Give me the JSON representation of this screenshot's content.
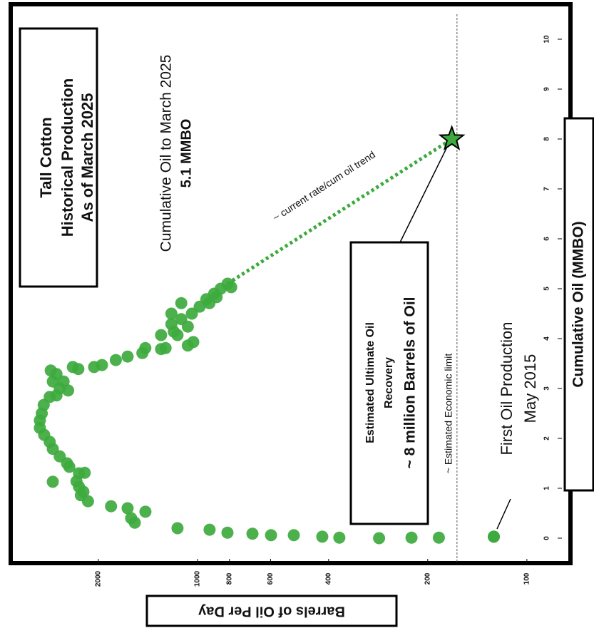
{
  "chart_data": {
    "type": "scatter",
    "title": [
      "Tall Cotton",
      "Historical Production",
      "As of March 2025"
    ],
    "x_label": "Cumulative Oil (MMBO)",
    "y_label": "Barrels of Oil Per Day",
    "x": [
      0.03,
      0.01,
      0.01,
      0,
      0.01,
      0.03,
      0.06,
      0.06,
      0.09,
      0.11,
      0.17,
      0.2,
      0.53,
      0.4,
      0.31,
      0.6,
      0.64,
      0.74,
      0.93,
      1.03,
      1.14,
      0.86,
      1.13,
      1.3,
      1.43,
      1.31,
      1.5,
      1.64,
      1.79,
      1.93,
      2.07,
      2.21,
      2.36,
      2.5,
      2.67,
      2.83,
      2.86,
      3.0,
      3.14,
      2.96,
      3.29,
      3.36,
      3.14,
      3.43,
      3.39,
      3.43,
      3.47,
      3.57,
      3.64,
      3.71,
      3.79,
      3.81,
      3.81,
      4.07,
      4.14,
      3.86,
      3.93,
      4.29,
      4.39,
      4.24,
      4.5,
      4.64,
      4.79,
      4.9,
      5.0,
      5.1,
      5.03,
      4.71,
      4.71,
      4.5,
      4.07,
      4.83
    ],
    "values": [
      126,
      185,
      224,
      281,
      371,
      418,
      510,
      598,
      681,
      811,
      919,
      1150,
      1439,
      1590,
      1550,
      1630,
      1830,
      2150,
      2220,
      2290,
      2330,
      2260,
      2750,
      2290,
      2450,
      2200,
      2490,
      2620,
      2750,
      2810,
      2920,
      3010,
      3010,
      2970,
      2930,
      2810,
      2680,
      2620,
      2550,
      2470,
      2680,
      2790,
      2750,
      2390,
      2300,
      2060,
      1950,
      1770,
      1630,
      1470,
      1290,
      1250,
      1440,
      1290,
      1180,
      1070,
      1030,
      1200,
      1120,
      1070,
      1040,
      985,
      940,
      890,
      850,
      810,
      790,
      920,
      1120,
      1200,
      1150,
      875
    ],
    "color": "#3daa3d",
    "xlim": [
      -0.5,
      10.5
    ],
    "xticks": [
      0,
      1,
      2,
      3,
      4,
      5,
      6,
      7,
      8,
      9,
      10
    ],
    "ylim": [
      90,
      3600
    ],
    "yticks": [
      100,
      200,
      400,
      600,
      800,
      1000,
      2000
    ],
    "y_log": true,
    "cumulative_note": [
      "Cumulative Oil to March 2025",
      "5.1 MMBO"
    ],
    "trend": {
      "label": "~ current rate/cum oil trend",
      "x": [
        5.1,
        8.0
      ],
      "values": [
        810,
        169
      ]
    },
    "eur": {
      "x": 8.0,
      "value": 169,
      "lines": [
        "Estimated Ultimate Oil",
        "Recovery",
        "~ 8 million Barrels of Oil"
      ]
    },
    "economic_limit": {
      "value": 163,
      "label": "~ Estimated Economic limit"
    },
    "first_production": {
      "x": 0.03,
      "value": 126,
      "lines": [
        "First Oil Production",
        "May 2015"
      ]
    }
  }
}
